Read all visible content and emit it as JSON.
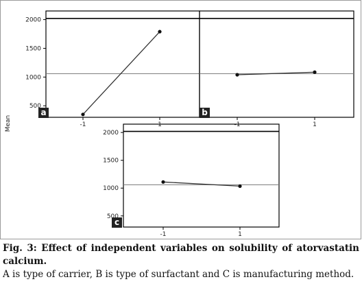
{
  "chart_data": {
    "type": "line",
    "ylabel": "Mean",
    "ylim": [
      300,
      2150
    ],
    "yticks": [
      500,
      1000,
      1500,
      2000
    ],
    "grand_mean": 1060,
    "upper_line": 2020,
    "panels": [
      {
        "label": "a",
        "categories": [
          "-1",
          "1"
        ],
        "values": [
          350,
          1790
        ]
      },
      {
        "label": "b",
        "categories": [
          "-1",
          "1"
        ],
        "values": [
          1040,
          1085
        ]
      },
      {
        "label": "c",
        "categories": [
          "-1",
          "1"
        ],
        "values": [
          1110,
          1035
        ]
      }
    ]
  },
  "caption": {
    "line1": "Fig. 3: Effect of independent variables on solubility of atorvastatin calcium.",
    "line2": "A is type of carrier, B is type of surfactant and C is manufacturing method."
  },
  "colors": {
    "line": "#333333",
    "axis": "#000000",
    "reference": "#777777"
  }
}
